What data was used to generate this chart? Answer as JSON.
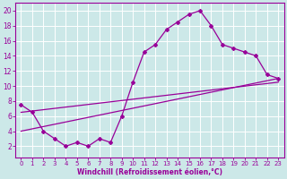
{
  "xlabel": "Windchill (Refroidissement éolien,°C)",
  "bg_color": "#cce8e8",
  "grid_color": "#ffffff",
  "line_color": "#990099",
  "xlim": [
    -0.5,
    23.5
  ],
  "ylim": [
    0.5,
    21
  ],
  "xticks": [
    0,
    1,
    2,
    3,
    4,
    5,
    6,
    7,
    8,
    9,
    10,
    11,
    12,
    13,
    14,
    15,
    16,
    17,
    18,
    19,
    20,
    21,
    22,
    23
  ],
  "yticks": [
    2,
    4,
    6,
    8,
    10,
    12,
    14,
    16,
    18,
    20
  ],
  "curve1_x": [
    0,
    1,
    2,
    3,
    4,
    5,
    6,
    7,
    8,
    9,
    10,
    11,
    12,
    13,
    14,
    15,
    16,
    17,
    18,
    19,
    20,
    21,
    22,
    23
  ],
  "curve1_y": [
    7.5,
    6.5,
    4.0,
    3.0,
    2.0,
    2.5,
    2.0,
    3.0,
    2.5,
    6.0,
    10.5,
    14.5,
    15.5,
    17.5,
    18.5,
    19.5,
    20.0,
    18.0,
    15.5,
    15.0,
    14.5,
    14.0,
    11.5,
    11.0
  ],
  "curve2_x": [
    0,
    23
  ],
  "curve2_y": [
    6.5,
    10.5
  ],
  "curve3_x": [
    0,
    23
  ],
  "curve3_y": [
    4.0,
    11.0
  ],
  "marker": "D",
  "markersize": 2.0,
  "linewidth": 0.9,
  "xlabel_fontsize": 5.5,
  "tick_fontsize_x": 5.0,
  "tick_fontsize_y": 5.5
}
